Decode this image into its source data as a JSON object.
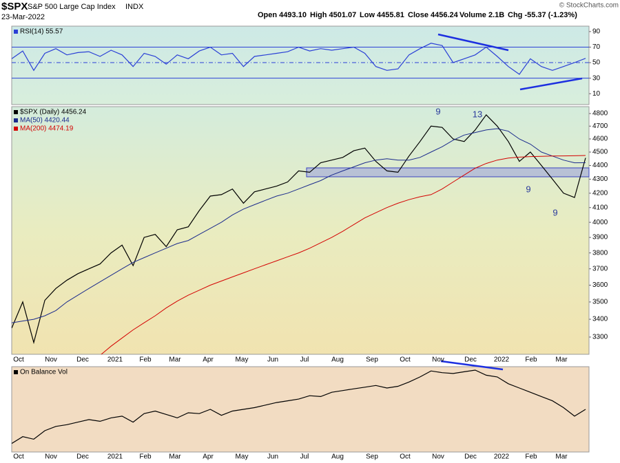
{
  "header": {
    "symbol": "$SPX",
    "name": "S&P 500 Large Cap Index",
    "exchange": "INDX",
    "date": "23-Mar-2022",
    "open": "Open 4493.10",
    "high": "High 4501.07",
    "low": "Low 4455.81",
    "close": "Close 4456.24",
    "volume": "Volume 2.1B",
    "change": "Chg -55.37 (-1.23%)",
    "credit": "© StockCharts.com"
  },
  "x_axis_labels": [
    "Oct",
    "Nov",
    "Dec",
    "2021",
    "Feb",
    "Mar",
    "Apr",
    "May",
    "Jun",
    "Jul",
    "Aug",
    "Sep",
    "Oct",
    "Nov",
    "Dec",
    "2022",
    "Feb",
    "Mar"
  ],
  "chart_data": [
    {
      "type": "line",
      "series": [
        {
          "name": "RSI(14) 55.57",
          "color": "#2a3fd6",
          "values": [
            55,
            65,
            40,
            62,
            68,
            60,
            63,
            64,
            58,
            66,
            60,
            45,
            62,
            58,
            48,
            60,
            55,
            65,
            70,
            60,
            62,
            45,
            58,
            60,
            62,
            64,
            70,
            65,
            68,
            66,
            68,
            70,
            62,
            45,
            40,
            42,
            60,
            68,
            75,
            72,
            50,
            55,
            60,
            70,
            58,
            45,
            35,
            55,
            45,
            40,
            45,
            50,
            55.57
          ]
        }
      ],
      "ylim": [
        -4,
        97
      ],
      "yticks": [
        10,
        30,
        50,
        70,
        90
      ],
      "levels": [
        30,
        70
      ],
      "midline": 50
    },
    {
      "type": "line",
      "log": true,
      "series": [
        {
          "name": "$SPX (Daily) 4456.24",
          "color": "#000000",
          "values": [
            3350,
            3500,
            3270,
            3510,
            3580,
            3630,
            3670,
            3700,
            3730,
            3800,
            3850,
            3720,
            3900,
            3920,
            3840,
            3950,
            3970,
            4080,
            4180,
            4190,
            4230,
            4130,
            4210,
            4230,
            4250,
            4280,
            4360,
            4350,
            4420,
            4440,
            4460,
            4510,
            4530,
            4430,
            4360,
            4350,
            4470,
            4580,
            4700,
            4690,
            4600,
            4580,
            4670,
            4790,
            4700,
            4580,
            4430,
            4500,
            4400,
            4300,
            4200,
            4170,
            4456.24
          ]
        },
        {
          "name": "MA(50) 4420.44",
          "color": "#1a2a8c",
          "values": [
            3380,
            3390,
            3400,
            3420,
            3450,
            3500,
            3540,
            3580,
            3620,
            3660,
            3700,
            3740,
            3770,
            3800,
            3830,
            3860,
            3880,
            3920,
            3960,
            4000,
            4050,
            4090,
            4120,
            4150,
            4180,
            4200,
            4230,
            4260,
            4290,
            4330,
            4360,
            4390,
            4420,
            4440,
            4450,
            4440,
            4440,
            4460,
            4500,
            4540,
            4590,
            4630,
            4650,
            4670,
            4680,
            4660,
            4600,
            4560,
            4500,
            4470,
            4440,
            4420,
            4420.44
          ]
        },
        {
          "name": "MA(200) 4474.19",
          "color": "#d40000",
          "values": [
            null,
            null,
            null,
            null,
            null,
            null,
            null,
            null,
            3200,
            3250,
            3295,
            3340,
            3380,
            3420,
            3465,
            3505,
            3540,
            3570,
            3600,
            3625,
            3650,
            3675,
            3700,
            3725,
            3750,
            3775,
            3800,
            3830,
            3865,
            3900,
            3940,
            3985,
            4030,
            4065,
            4100,
            4130,
            4155,
            4175,
            4190,
            4230,
            4280,
            4330,
            4380,
            4415,
            4440,
            4455,
            4462,
            4466,
            4468,
            4470,
            4471,
            4472,
            4474.19
          ]
        }
      ],
      "ylim": [
        3206,
        4856
      ],
      "yticks": [
        3300,
        3400,
        3500,
        3600,
        3700,
        3800,
        3900,
        4000,
        4100,
        4200,
        4300,
        4400,
        4500,
        4600,
        4700,
        4800
      ],
      "annotations": [
        "9",
        "13",
        "9",
        "9"
      ]
    },
    {
      "type": "line",
      "series": [
        {
          "name": "On Balance Vol",
          "color": "#000000",
          "values": [
            10,
            18,
            15,
            25,
            30,
            32,
            35,
            38,
            36,
            40,
            42,
            35,
            45,
            48,
            44,
            40,
            46,
            45,
            50,
            43,
            48,
            50,
            52,
            55,
            58,
            60,
            62,
            66,
            65,
            70,
            72,
            74,
            76,
            78,
            75,
            77,
            82,
            88,
            95,
            93,
            92,
            94,
            96,
            90,
            88,
            80,
            75,
            70,
            65,
            60,
            52,
            42,
            50
          ]
        }
      ],
      "ylim": [
        0,
        100
      ]
    }
  ]
}
